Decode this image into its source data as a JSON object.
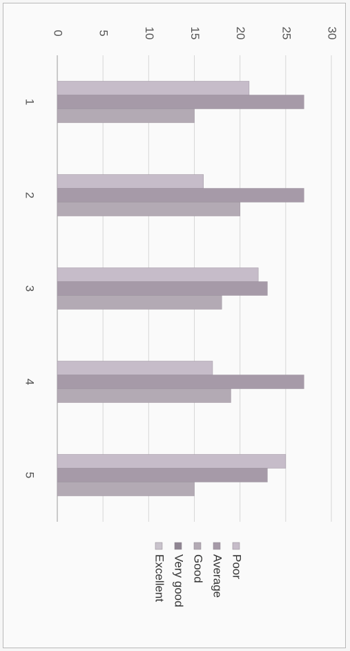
{
  "chart_data": {
    "type": "bar",
    "orientation": "rotated 90 degrees clockwise (value axis across top, categories down the page)",
    "title": "",
    "xlabel": "",
    "ylabel": "",
    "categories": [
      "1",
      "2",
      "3",
      "4",
      "5"
    ],
    "ylim": [
      0,
      30
    ],
    "yticks": [
      "0",
      "5",
      "10",
      "15",
      "20",
      "25",
      "30"
    ],
    "grid": true,
    "legend_position": "bottom",
    "series": [
      {
        "name": "Poor",
        "values": [
          21,
          16,
          22,
          17,
          25
        ],
        "color": "#c6bcc9"
      },
      {
        "name": "Average",
        "values": [
          27,
          27,
          23,
          27,
          23
        ],
        "color": "#a69aa8"
      },
      {
        "name": "Good",
        "values": [
          15,
          20,
          18,
          19,
          15
        ],
        "color": "#b3aab4"
      },
      {
        "name": "Very good",
        "values": [
          null,
          null,
          null,
          null,
          null
        ],
        "color": "#8f8592"
      },
      {
        "name": "Excellent",
        "values": [
          null,
          null,
          null,
          null,
          null
        ],
        "color": "#c9c3cc"
      }
    ]
  }
}
